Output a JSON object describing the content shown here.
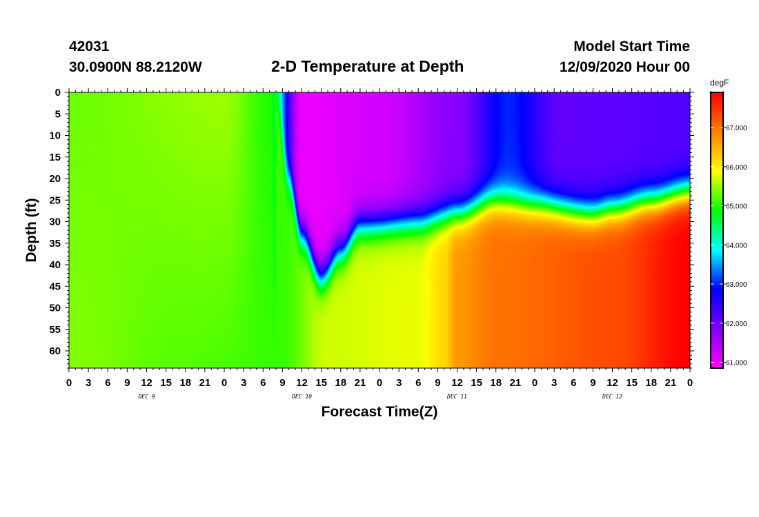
{
  "header": {
    "station": "42031",
    "location": "30.0900N 88.2120W",
    "title": "2-D Temperature at Depth",
    "model_start_label": "Model Start Time",
    "model_start_value": "12/09/2020 Hour 00"
  },
  "colorbar": {
    "unit": "degF",
    "ticks": [
      {
        "value": 61.0,
        "label": "61.000"
      },
      {
        "value": 62.0,
        "label": "62.000"
      },
      {
        "value": 63.0,
        "label": "63.000"
      },
      {
        "value": 64.0,
        "label": "64.000"
      },
      {
        "value": 65.0,
        "label": "65.000"
      },
      {
        "value": 66.0,
        "label": "66.000"
      },
      {
        "value": 67.0,
        "label": "67.000"
      }
    ],
    "range": [
      60.85,
      67.9
    ],
    "colors": [
      "#ff00ff",
      "#8000ff",
      "#0000ff",
      "#00ffff",
      "#00ff00",
      "#ffff00",
      "#ff8000",
      "#ff0000"
    ]
  },
  "chart_data": {
    "type": "heatmap",
    "title": "2-D Temperature at Depth",
    "xlabel": "Forecast Time(Z)",
    "ylabel": "Depth (ft)",
    "x_range_hours": [
      0,
      96
    ],
    "x_tick_labels": [
      "0",
      "3",
      "6",
      "9",
      "12",
      "15",
      "18",
      "21",
      "0",
      "3",
      "6",
      "9",
      "12",
      "15",
      "18",
      "21",
      "0",
      "3",
      "6",
      "9",
      "12",
      "15",
      "18",
      "21",
      "0",
      "3",
      "6",
      "9",
      "12",
      "15",
      "18",
      "21",
      "0"
    ],
    "date_labels": [
      {
        "hour": 12,
        "label": "DEC 9"
      },
      {
        "hour": 36,
        "label": "DEC 10"
      },
      {
        "hour": 60,
        "label": "DEC 11"
      },
      {
        "hour": 84,
        "label": "DEC 12"
      }
    ],
    "ylim": [
      0,
      64
    ],
    "y_tick_labels": [
      "0",
      "5",
      "10",
      "15",
      "20",
      "25",
      "30",
      "35",
      "40",
      "45",
      "50",
      "55",
      "60"
    ],
    "y_tick_values": [
      0,
      5,
      10,
      15,
      20,
      25,
      30,
      35,
      40,
      45,
      50,
      55,
      60
    ],
    "value_unit": "degF",
    "thermocline_depth_ft": [
      {
        "hour": 0,
        "depth": null
      },
      {
        "hour": 32,
        "depth": 0
      },
      {
        "hour": 34,
        "depth": 20
      },
      {
        "hour": 36,
        "depth": 33
      },
      {
        "hour": 39,
        "depth": 43
      },
      {
        "hour": 42,
        "depth": 37
      },
      {
        "hour": 45,
        "depth": 31
      },
      {
        "hour": 54,
        "depth": 30
      },
      {
        "hour": 60,
        "depth": 28
      },
      {
        "hour": 66,
        "depth": 25
      },
      {
        "hour": 72,
        "depth": 26
      },
      {
        "hour": 81,
        "depth": 28
      },
      {
        "hour": 84,
        "depth": 27
      },
      {
        "hour": 90,
        "depth": 25
      },
      {
        "hour": 96,
        "depth": 23
      }
    ],
    "surface_temp_degF": [
      {
        "hour": 0,
        "value": 65.3
      },
      {
        "hour": 24,
        "value": 65.5
      },
      {
        "hour": 31,
        "value": 65.0
      },
      {
        "hour": 36,
        "value": 61.0
      },
      {
        "hour": 48,
        "value": 61.2
      },
      {
        "hour": 60,
        "value": 61.8
      },
      {
        "hour": 68,
        "value": 63.0
      },
      {
        "hour": 76,
        "value": 62.1
      },
      {
        "hour": 96,
        "value": 62.2
      }
    ],
    "bottom_temp_degF": [
      {
        "hour": 0,
        "value": 65.4
      },
      {
        "hour": 18,
        "value": 65.2
      },
      {
        "hour": 33,
        "value": 65.1
      },
      {
        "hour": 40,
        "value": 65.7
      },
      {
        "hour": 54,
        "value": 65.8
      },
      {
        "hour": 58,
        "value": 66.2
      },
      {
        "hour": 60,
        "value": 66.7
      },
      {
        "hour": 66,
        "value": 67.0
      },
      {
        "hour": 84,
        "value": 67.3
      },
      {
        "hour": 96,
        "value": 67.9
      }
    ],
    "grid": false
  }
}
